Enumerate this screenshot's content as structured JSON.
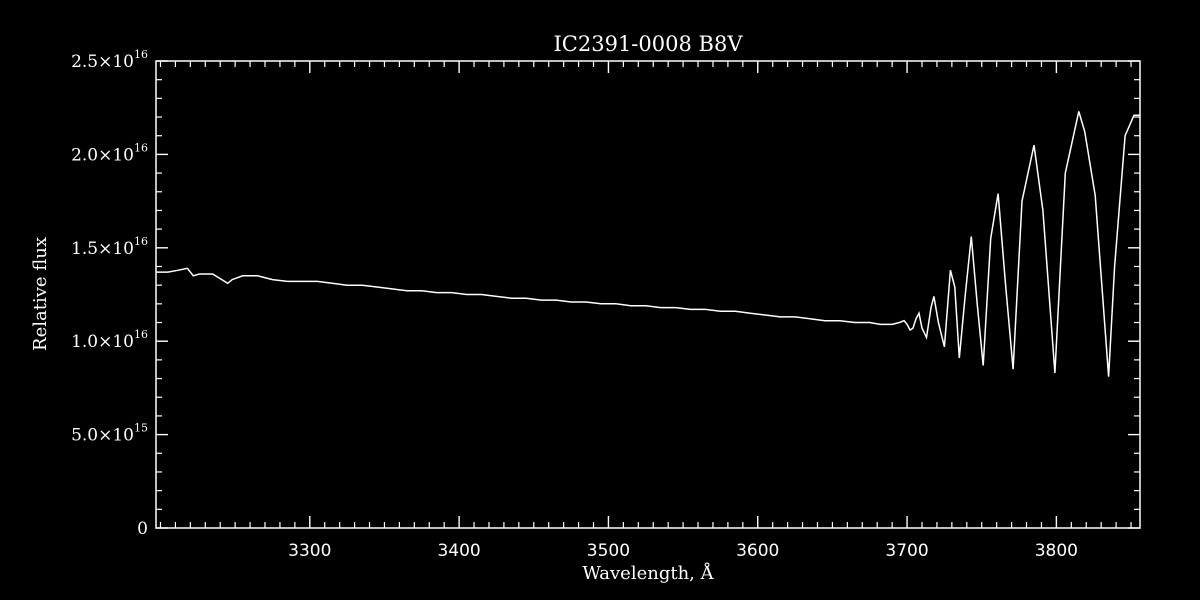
{
  "chart_data": {
    "type": "line",
    "title": "IC2391-0008   B8V",
    "xlabel": "Wavelength, Å",
    "ylabel": "Relative flux",
    "xlim": [
      3197,
      3856
    ],
    "ylim": [
      0,
      2.5e+16
    ],
    "x_ticks": [
      {
        "value": 3300,
        "label": "3300"
      },
      {
        "value": 3400,
        "label": "3400"
      },
      {
        "value": 3500,
        "label": "3500"
      },
      {
        "value": 3600,
        "label": "3600"
      },
      {
        "value": 3700,
        "label": "3700"
      },
      {
        "value": 3800,
        "label": "3800"
      }
    ],
    "y_ticks": [
      {
        "value": 0,
        "mantissa": "0",
        "exponent": ""
      },
      {
        "value": 5000000000000000.0,
        "mantissa": "5.0×10",
        "exponent": "15"
      },
      {
        "value": 1e+16,
        "mantissa": "1.0×10",
        "exponent": "16"
      },
      {
        "value": 1.5e+16,
        "mantissa": "1.5×10",
        "exponent": "16"
      },
      {
        "value": 2e+16,
        "mantissa": "2.0×10",
        "exponent": "16"
      },
      {
        "value": 2.5e+16,
        "mantissa": "2.5×10",
        "exponent": "16"
      }
    ],
    "x_minor_step": 10,
    "y_minor_step": 1000000000000000.0,
    "grid": false,
    "legend": "none",
    "series": [
      {
        "line_color": "#ffffff",
        "x": [
          3197,
          3205,
          3212,
          3218,
          3222,
          3226,
          3235,
          3245,
          3248,
          3255,
          3265,
          3275,
          3285,
          3295,
          3305,
          3315,
          3325,
          3335,
          3345,
          3355,
          3365,
          3375,
          3385,
          3395,
          3405,
          3415,
          3425,
          3435,
          3445,
          3455,
          3465,
          3475,
          3485,
          3495,
          3505,
          3515,
          3525,
          3535,
          3545,
          3555,
          3565,
          3575,
          3585,
          3595,
          3605,
          3615,
          3625,
          3635,
          3645,
          3655,
          3665,
          3675,
          3682,
          3690,
          3695,
          3698,
          3700,
          3702,
          3704,
          3706,
          3708,
          3710,
          3713,
          3716,
          3718,
          3721,
          3725,
          3729,
          3732,
          3735,
          3739,
          3743,
          3747,
          3751,
          3756,
          3761,
          3766,
          3771,
          3777,
          3785,
          3791,
          3799,
          3806,
          3815,
          3819,
          3826,
          3835,
          3839,
          3846,
          3852,
          3856
        ],
        "y": [
          1.37e+16,
          1.37e+16,
          1.38e+16,
          1.39e+16,
          1.35e+16,
          1.36e+16,
          1.36e+16,
          1.31e+16,
          1.33e+16,
          1.35e+16,
          1.35e+16,
          1.33e+16,
          1.32e+16,
          1.32e+16,
          1.32e+16,
          1.31e+16,
          1.3e+16,
          1.3e+16,
          1.29e+16,
          1.28e+16,
          1.27e+16,
          1.27e+16,
          1.26e+16,
          1.26e+16,
          1.25e+16,
          1.25e+16,
          1.24e+16,
          1.23e+16,
          1.23e+16,
          1.22e+16,
          1.22e+16,
          1.21e+16,
          1.21e+16,
          1.2e+16,
          1.2e+16,
          1.19e+16,
          1.19e+16,
          1.18e+16,
          1.18e+16,
          1.17e+16,
          1.17e+16,
          1.16e+16,
          1.16e+16,
          1.15e+16,
          1.14e+16,
          1.13e+16,
          1.13e+16,
          1.12e+16,
          1.11e+16,
          1.11e+16,
          1.1e+16,
          1.1e+16,
          1.09e+16,
          1.09e+16,
          1.1e+16,
          1.11e+16,
          1.09e+16,
          1.06e+16,
          1.07e+16,
          1.12e+16,
          1.15e+16,
          1.07e+16,
          1.02e+16,
          1.18e+16,
          1.24e+16,
          1.1e+16,
          9700000000000000.0,
          1.38e+16,
          1.29e+16,
          9100000000000000.0,
          1.25e+16,
          1.56e+16,
          1.2e+16,
          8700000000000000.0,
          1.55e+16,
          1.79e+16,
          1.3e+16,
          8500000000000000.0,
          1.75e+16,
          2.05e+16,
          1.7e+16,
          8300000000000000.0,
          1.9e+16,
          2.23e+16,
          2.12e+16,
          1.78e+16,
          8100000000000000.0,
          1.4e+16,
          2.1e+16,
          2.21e+16,
          2.21e+16
        ]
      }
    ]
  }
}
